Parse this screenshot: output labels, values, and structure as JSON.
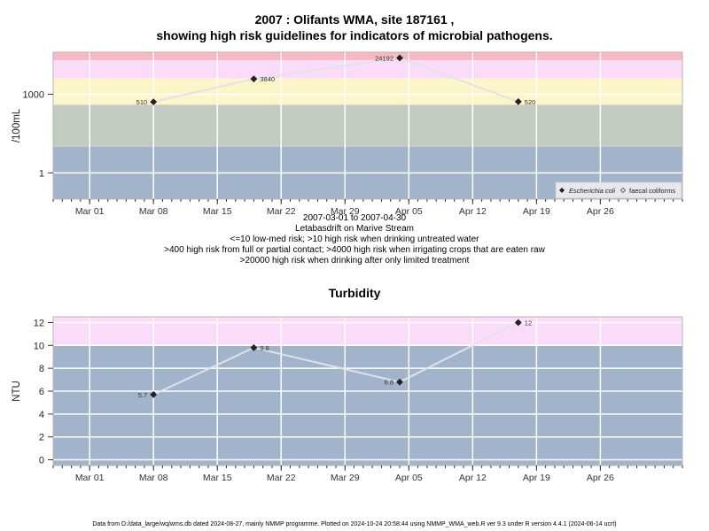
{
  "header": {
    "title_line1": "2007 : Olifants WMA, site 187161 ,",
    "title_line2": "showing high risk guidelines for indicators of microbial pathogens."
  },
  "caption": {
    "range": "2007-03-01 to 2007-04-30",
    "site": "Letabasdrift on Marive Stream",
    "guide1": "<=10 low-med risk; >10 high risk when drinking untreated water",
    "guide2": ">400 high risk from full or partial contact; >4000 high risk when irrigating crops that are eaten raw",
    "guide3": ">20000 high risk when drinking after only limited treatment"
  },
  "footer": {
    "text": "Data from D:/data_large/wq/wms.db dated 2024-08-27, mainly NMMP programme. Plotted on 2024-10-24 20:58:44 using NMMP_WMA_web.R ver 9.3 under R version 4.4.1 (2024-06-14 ucrt)"
  },
  "colors": {
    "band_low": "#a2b4cc",
    "band_green": "#c2cbbf",
    "band_yellow": "#fcf5c8",
    "band_pink": "#fadcfa",
    "band_red": "#f8b7c3",
    "line": "#e2e2e6",
    "grid": "#ffffff",
    "marker": "#222222"
  },
  "chart_data": [
    {
      "type": "line",
      "title": "",
      "ylabel": "/100mL",
      "xlabel": "",
      "y_scale": "log",
      "ylim": [
        0.1,
        40000
      ],
      "x_range": [
        "2007-02-25",
        "2007-05-05"
      ],
      "x_ticks": [
        "Mar 01",
        "Mar 08",
        "Mar 15",
        "Mar 22",
        "Mar 29",
        "Apr 05",
        "Apr 12",
        "Apr 19",
        "Apr 26"
      ],
      "y_ticks": [
        "1",
        "1000"
      ],
      "grid": true,
      "legend_position": "bottom-right",
      "bands": [
        10,
        400,
        4000,
        20000
      ],
      "series": [
        {
          "name": "Escherichia coli",
          "marker": "filled-diamond",
          "points": [
            {
              "x": "2007-03-08",
              "y": 510,
              "label": "510",
              "label_side": "left"
            },
            {
              "x": "2007-03-19",
              "y": 3840,
              "label": "3840",
              "label_side": "right"
            },
            {
              "x": "2007-04-04",
              "y": 24192,
              "label": "24192",
              "label_side": "left"
            },
            {
              "x": "2007-04-17",
              "y": 520,
              "label": "520",
              "label_side": "right"
            }
          ]
        },
        {
          "name": "faecal coliforms",
          "marker": "open-diamond",
          "points": []
        }
      ]
    },
    {
      "type": "line",
      "title": "Turbidity",
      "ylabel": "NTU",
      "xlabel": "",
      "ylim": [
        -0.5,
        12.5
      ],
      "x_range": [
        "2007-02-25",
        "2007-05-05"
      ],
      "x_ticks": [
        "Mar 01",
        "Mar 08",
        "Mar 15",
        "Mar 22",
        "Mar 29",
        "Apr 05",
        "Apr 12",
        "Apr 19",
        "Apr 26"
      ],
      "y_ticks": [
        "0",
        "2",
        "4",
        "6",
        "8",
        "10",
        "12"
      ],
      "grid": true,
      "bands": [
        10
      ],
      "series": [
        {
          "name": "",
          "marker": "filled-diamond",
          "points": [
            {
              "x": "2007-03-08",
              "y": 5.7,
              "label": "5.7",
              "label_side": "left"
            },
            {
              "x": "2007-03-19",
              "y": 9.8,
              "label": "9.8",
              "label_side": "right"
            },
            {
              "x": "2007-04-04",
              "y": 6.8,
              "label": "6.8",
              "label_side": "left"
            },
            {
              "x": "2007-04-17",
              "y": 12,
              "label": "12",
              "label_side": "right"
            }
          ]
        }
      ]
    }
  ]
}
